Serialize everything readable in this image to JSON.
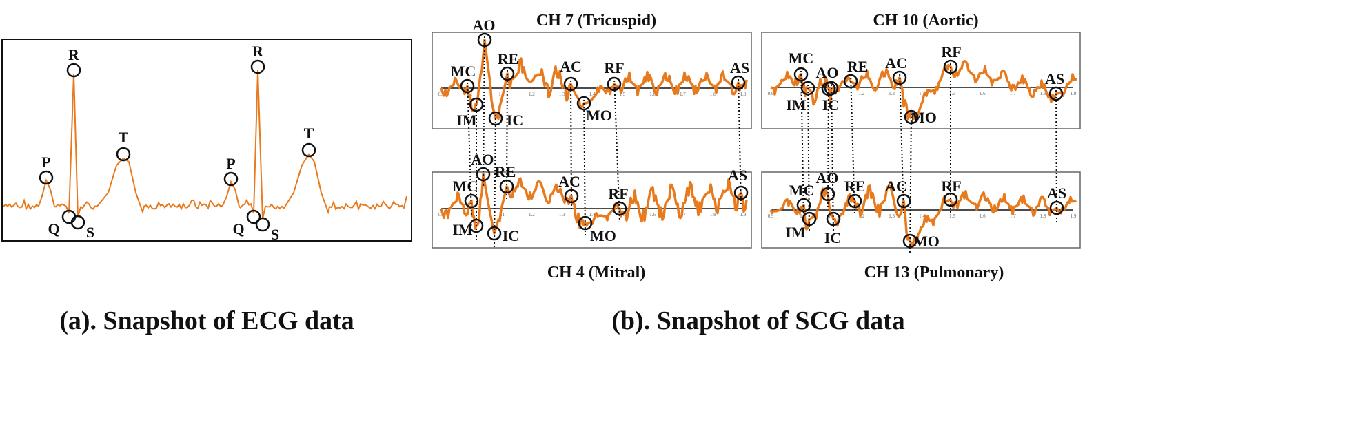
{
  "colors": {
    "trace": "#E87A1E",
    "marker": "#111111",
    "frame": "#666666"
  },
  "ecg": {
    "caption": "(a). Snapshot of ECG data",
    "beats": [
      {
        "labels": [
          "P",
          "Q",
          "R",
          "S",
          "T"
        ]
      },
      {
        "labels": [
          "P",
          "Q",
          "R",
          "S",
          "T"
        ]
      }
    ]
  },
  "scg": {
    "caption": "(b). Snapshot of SCG data",
    "ticks": [
      "0.9",
      "1",
      "1.1",
      "1.2",
      "1.3",
      "1.4",
      "1.5",
      "1.6",
      "1.7",
      "1.8",
      "1.9"
    ],
    "panels": [
      {
        "title": "CH 7 (Tricuspid)",
        "markers": [
          "MC",
          "IM",
          "AO",
          "IC",
          "RE",
          "AC",
          "MO",
          "RF",
          "AS"
        ]
      },
      {
        "title": "CH 4 (Mitral)",
        "markers": [
          "MC",
          "IM",
          "AO",
          "IC",
          "RE",
          "AC",
          "MO",
          "RF",
          "AS"
        ]
      },
      {
        "title": "CH 10 (Aortic)",
        "markers": [
          "MC",
          "IM",
          "AO",
          "IC",
          "RE",
          "AC",
          "MO",
          "RF",
          "AS"
        ]
      },
      {
        "title": "CH 13 (Pulmonary)",
        "markers": [
          "MC",
          "IM",
          "AO",
          "IC",
          "RE",
          "AC",
          "MO",
          "RF",
          "AS"
        ]
      }
    ]
  }
}
